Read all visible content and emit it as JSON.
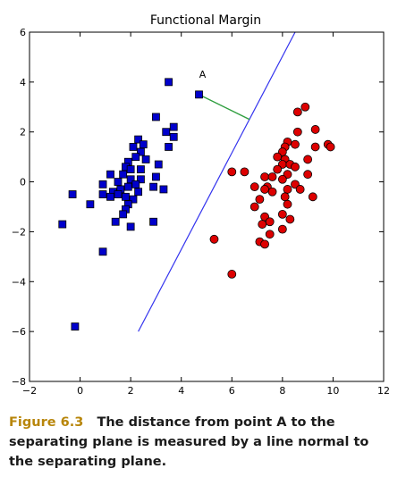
{
  "chart_data": {
    "type": "scatter",
    "title": "Functional Margin",
    "xlabel": "",
    "ylabel": "",
    "xlim": [
      -2,
      12
    ],
    "ylim": [
      -8,
      6
    ],
    "xticks": [
      -2,
      0,
      2,
      4,
      6,
      8,
      10,
      12
    ],
    "yticks": [
      -8,
      -6,
      -4,
      -2,
      0,
      2,
      4,
      6
    ],
    "tick_labels_x": [
      "−2",
      "0",
      "2",
      "4",
      "6",
      "8",
      "10",
      "12"
    ],
    "tick_labels_y": [
      "−8",
      "−6",
      "−4",
      "−2",
      "0",
      "2",
      "4",
      "6"
    ],
    "grid": false,
    "series": [
      {
        "marker": "square",
        "color": "#0000cc",
        "points": [
          [
            3.5,
            4.0
          ],
          [
            4.7,
            3.5
          ],
          [
            3.0,
            2.6
          ],
          [
            3.7,
            2.2
          ],
          [
            3.4,
            2.0
          ],
          [
            3.7,
            1.8
          ],
          [
            2.3,
            1.7
          ],
          [
            2.5,
            1.5
          ],
          [
            2.1,
            1.4
          ],
          [
            3.5,
            1.4
          ],
          [
            2.4,
            1.2
          ],
          [
            2.2,
            1.0
          ],
          [
            2.6,
            0.9
          ],
          [
            1.9,
            0.8
          ],
          [
            3.1,
            0.7
          ],
          [
            1.8,
            0.6
          ],
          [
            2.0,
            0.5
          ],
          [
            2.4,
            0.5
          ],
          [
            1.2,
            0.3
          ],
          [
            1.7,
            0.3
          ],
          [
            3.0,
            0.2
          ],
          [
            2.0,
            0.1
          ],
          [
            2.4,
            0.1
          ],
          [
            1.5,
            0.0
          ],
          [
            2.2,
            -0.1
          ],
          [
            0.9,
            -0.1
          ],
          [
            2.9,
            -0.2
          ],
          [
            1.9,
            -0.2
          ],
          [
            3.3,
            -0.3
          ],
          [
            1.6,
            -0.3
          ],
          [
            1.3,
            -0.4
          ],
          [
            2.3,
            -0.4
          ],
          [
            -0.3,
            -0.5
          ],
          [
            0.9,
            -0.5
          ],
          [
            1.5,
            -0.5
          ],
          [
            1.2,
            -0.6
          ],
          [
            1.8,
            -0.6
          ],
          [
            2.1,
            -0.7
          ],
          [
            0.4,
            -0.9
          ],
          [
            1.9,
            -0.9
          ],
          [
            1.8,
            -1.1
          ],
          [
            1.7,
            -1.3
          ],
          [
            1.4,
            -1.6
          ],
          [
            2.9,
            -1.6
          ],
          [
            -0.7,
            -1.7
          ],
          [
            2.0,
            -1.8
          ],
          [
            0.9,
            -2.8
          ],
          [
            -0.2,
            -5.8
          ]
        ]
      },
      {
        "marker": "circle",
        "color": "#dd0000",
        "points": [
          [
            8.9,
            3.0
          ],
          [
            8.6,
            2.8
          ],
          [
            9.3,
            2.1
          ],
          [
            8.6,
            2.0
          ],
          [
            8.2,
            1.6
          ],
          [
            8.5,
            1.5
          ],
          [
            9.8,
            1.5
          ],
          [
            8.1,
            1.4
          ],
          [
            9.3,
            1.4
          ],
          [
            9.9,
            1.4
          ],
          [
            8.0,
            1.2
          ],
          [
            7.8,
            1.0
          ],
          [
            9.0,
            0.9
          ],
          [
            8.1,
            0.9
          ],
          [
            8.0,
            0.7
          ],
          [
            8.3,
            0.7
          ],
          [
            8.5,
            0.6
          ],
          [
            7.8,
            0.5
          ],
          [
            6.0,
            0.4
          ],
          [
            6.5,
            0.4
          ],
          [
            8.2,
            0.3
          ],
          [
            7.3,
            0.2
          ],
          [
            7.6,
            0.2
          ],
          [
            9.0,
            0.3
          ],
          [
            8.0,
            0.1
          ],
          [
            8.5,
            -0.1
          ],
          [
            6.9,
            -0.2
          ],
          [
            7.4,
            -0.2
          ],
          [
            7.3,
            -0.3
          ],
          [
            8.7,
            -0.3
          ],
          [
            8.2,
            -0.3
          ],
          [
            7.6,
            -0.4
          ],
          [
            9.2,
            -0.6
          ],
          [
            8.1,
            -0.6
          ],
          [
            7.1,
            -0.7
          ],
          [
            8.2,
            -0.9
          ],
          [
            6.9,
            -1.0
          ],
          [
            7.3,
            -1.4
          ],
          [
            8.0,
            -1.3
          ],
          [
            8.3,
            -1.5
          ],
          [
            7.5,
            -1.6
          ],
          [
            7.2,
            -1.7
          ],
          [
            8.0,
            -1.9
          ],
          [
            7.5,
            -2.1
          ],
          [
            5.3,
            -2.3
          ],
          [
            7.1,
            -2.4
          ],
          [
            7.3,
            -2.5
          ],
          [
            6.0,
            -3.7
          ]
        ]
      }
    ],
    "separating_line": {
      "color": "#3333ee",
      "from": [
        2.3,
        -6.0
      ],
      "to": [
        8.5,
        6.0
      ]
    },
    "normal_segment": {
      "color": "#2e9e3e",
      "from": [
        4.7,
        3.5
      ],
      "to": [
        6.7,
        2.5
      ]
    },
    "annotations": [
      {
        "text": "A",
        "x": 4.7,
        "y": 4.1
      }
    ]
  },
  "caption": {
    "figure_label": "Figure 6.3",
    "text": "The distance from point A to the separating plane is measured by a line normal to the separating plane."
  },
  "colors": {
    "figure_label": "#b8860b",
    "caption_text": "#1b1b1b",
    "axes": "#000000"
  }
}
